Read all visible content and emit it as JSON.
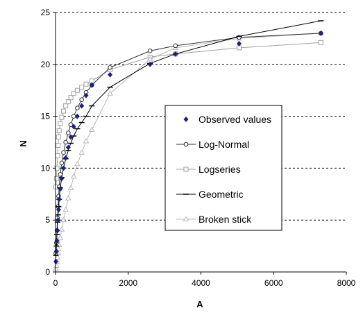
{
  "chart_data": {
    "type": "scatter",
    "title": "",
    "xlabel": "A",
    "ylabel": "N",
    "xlim": [
      0,
      8000
    ],
    "ylim": [
      0,
      25
    ],
    "xticks": [
      0,
      2000,
      4000,
      6000,
      8000
    ],
    "yticks": [
      0,
      5,
      10,
      15,
      20,
      25
    ],
    "xtick_labels": [
      "0",
      "2000",
      "4000",
      "6000",
      "8000"
    ],
    "ytick_labels": [
      "0",
      "5",
      "10",
      "15",
      "20",
      "25"
    ],
    "grid": "horizontal dashed",
    "legend_position": "center-right",
    "series": [
      {
        "name": "Observed values",
        "style": "markers",
        "marker": "diamond",
        "color": "#1a237e",
        "x": [
          10,
          25,
          40,
          55,
          70,
          85,
          100,
          130,
          170,
          220,
          280,
          350,
          420,
          500,
          600,
          720,
          840,
          1000,
          1500,
          2600,
          3300,
          5050,
          7300
        ],
        "y": [
          1,
          2,
          3,
          4,
          5,
          6,
          7,
          8,
          9,
          10,
          11,
          12,
          13,
          14,
          15,
          16,
          17,
          18,
          19,
          20,
          21,
          22,
          23
        ]
      },
      {
        "name": "Log-Normal",
        "style": "line-markers",
        "marker": "circle",
        "color": "#303030",
        "x": [
          10,
          25,
          40,
          55,
          70,
          85,
          100,
          130,
          170,
          220,
          280,
          350,
          420,
          500,
          600,
          720,
          840,
          1000,
          1500,
          2600,
          3300,
          5050,
          7300
        ],
        "y": [
          1.8,
          2.8,
          4.0,
          5.2,
          6.3,
          7.3,
          8.2,
          9.4,
          10.5,
          11.5,
          12.5,
          13.4,
          14.2,
          15.0,
          15.8,
          16.6,
          17.3,
          18.0,
          19.7,
          21.3,
          21.8,
          22.6,
          23.0
        ]
      },
      {
        "name": "Logseries",
        "style": "line-markers",
        "marker": "square",
        "color": "#a0a0a0",
        "x": [
          10,
          25,
          40,
          55,
          70,
          85,
          100,
          130,
          170,
          220,
          280,
          350,
          420,
          500,
          600,
          720,
          840,
          1000,
          1500,
          2600,
          3300,
          5050,
          7300
        ],
        "y": [
          8.2,
          9.0,
          10.0,
          11.2,
          12.2,
          13.0,
          13.6,
          14.3,
          14.9,
          15.5,
          16.0,
          16.4,
          16.8,
          17.2,
          17.5,
          17.8,
          18.1,
          18.4,
          19.5,
          20.7,
          21.0,
          21.6,
          22.1
        ]
      },
      {
        "name": "Geometric",
        "style": "line-markers",
        "marker": "dash",
        "color": "#000000",
        "x": [
          10,
          25,
          40,
          55,
          70,
          85,
          100,
          130,
          170,
          220,
          280,
          350,
          420,
          500,
          600,
          720,
          840,
          1000,
          1500,
          2600,
          3300,
          5050,
          7300
        ],
        "y": [
          1.6,
          2.5,
          3.6,
          4.8,
          5.5,
          6.3,
          7.0,
          8.1,
          9.1,
          10.0,
          10.9,
          11.7,
          12.4,
          13.1,
          13.8,
          14.4,
          15.0,
          16.0,
          17.8,
          20.1,
          21.0,
          22.7,
          24.2
        ]
      },
      {
        "name": "Broken stick",
        "style": "line-markers",
        "marker": "triangle",
        "color": "#b8b8b8",
        "x": [
          10,
          25,
          40,
          55,
          70,
          85,
          100,
          130,
          170,
          220,
          280,
          350,
          420,
          500,
          600,
          720,
          840,
          1000,
          1500,
          2600,
          3300,
          5050,
          7300
        ],
        "y": [
          0.3,
          0.6,
          1.0,
          1.4,
          1.8,
          2.2,
          2.6,
          3.3,
          4.1,
          5.0,
          6.0,
          7.1,
          8.1,
          9.2,
          10.4,
          11.5,
          12.6,
          13.7,
          17.2,
          20.5,
          21.6,
          22.5,
          23.0
        ]
      }
    ]
  }
}
